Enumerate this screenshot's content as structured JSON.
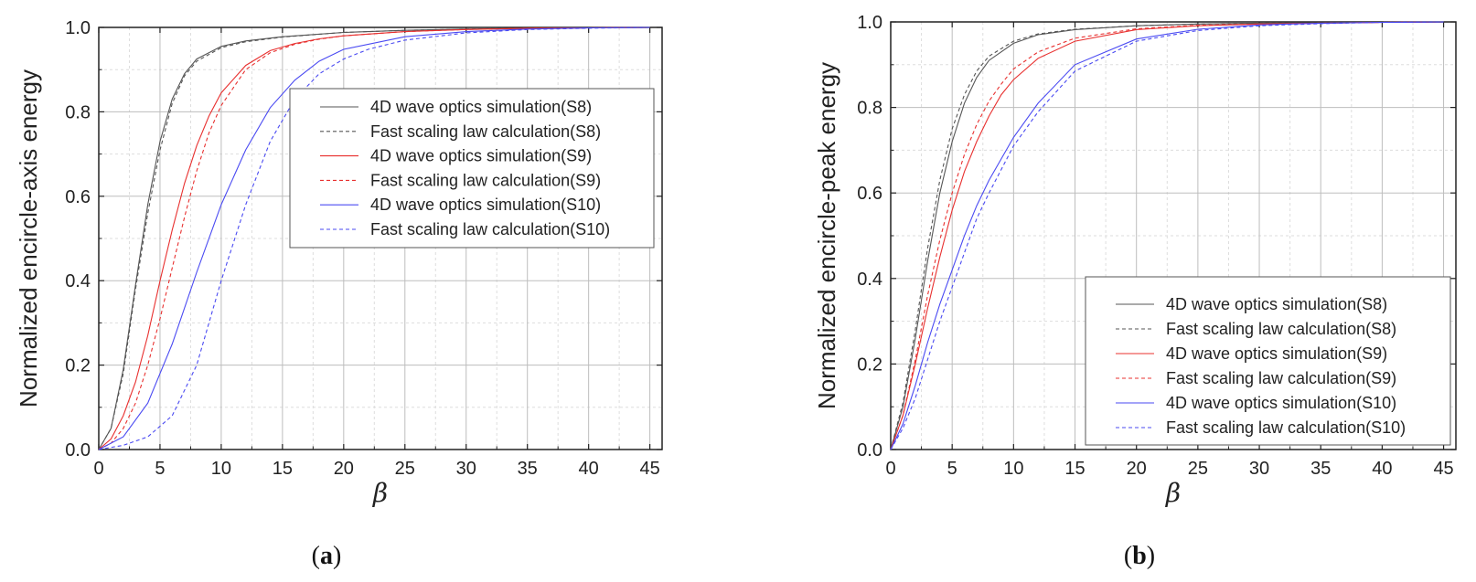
{
  "chart_data": [
    {
      "type": "line",
      "panel_label": "a",
      "xlabel": "β",
      "ylabel": "Normalized encircle-axis energy",
      "xlim": [
        0,
        46
      ],
      "ylim": [
        0,
        1.0
      ],
      "xticks": [
        "0",
        "5",
        "10",
        "15",
        "20",
        "25",
        "30",
        "35",
        "40",
        "45"
      ],
      "yticks": [
        "0.0",
        "0.2",
        "0.4",
        "0.6",
        "0.8",
        "1.0"
      ],
      "grid": true,
      "legend_position": "upper-right",
      "series": [
        {
          "name": "4D wave optics simulation(S8)",
          "color": "#555555",
          "dash": "solid",
          "x": [
            0,
            1,
            2,
            3,
            4,
            5,
            6,
            7,
            8,
            10,
            12,
            15,
            20,
            25,
            30,
            35,
            40,
            45
          ],
          "y": [
            0,
            0.05,
            0.19,
            0.39,
            0.58,
            0.73,
            0.83,
            0.89,
            0.925,
            0.955,
            0.968,
            0.978,
            0.988,
            0.993,
            0.996,
            0.998,
            0.999,
            1.0
          ]
        },
        {
          "name": "Fast scaling law calculation(S8)",
          "color": "#555555",
          "dash": "dashed",
          "x": [
            0,
            1,
            2,
            3,
            4,
            5,
            6,
            7,
            8,
            10,
            12,
            15,
            20,
            25,
            30,
            35,
            40,
            45
          ],
          "y": [
            0,
            0.05,
            0.18,
            0.38,
            0.56,
            0.71,
            0.82,
            0.885,
            0.92,
            0.952,
            0.966,
            0.977,
            0.988,
            0.993,
            0.996,
            0.998,
            0.999,
            1.0
          ]
        },
        {
          "name": "4D wave optics simulation(S9)",
          "color": "#e8302f",
          "dash": "solid",
          "x": [
            0,
            1,
            2,
            3,
            4,
            5,
            6,
            7,
            8,
            9,
            10,
            12,
            14,
            16,
            18,
            20,
            25,
            30,
            35,
            40,
            45
          ],
          "y": [
            0,
            0.025,
            0.08,
            0.16,
            0.27,
            0.4,
            0.52,
            0.63,
            0.72,
            0.79,
            0.845,
            0.91,
            0.945,
            0.962,
            0.973,
            0.98,
            0.99,
            0.995,
            0.998,
            0.999,
            1.0
          ]
        },
        {
          "name": "Fast scaling law calculation(S9)",
          "color": "#e8302f",
          "dash": "dashed",
          "x": [
            0,
            1,
            2,
            3,
            4,
            5,
            6,
            7,
            8,
            9,
            10,
            12,
            14,
            16,
            18,
            20,
            25,
            30,
            35,
            40,
            45
          ],
          "y": [
            0,
            0.015,
            0.05,
            0.11,
            0.2,
            0.31,
            0.43,
            0.55,
            0.66,
            0.75,
            0.815,
            0.9,
            0.94,
            0.96,
            0.972,
            0.98,
            0.99,
            0.995,
            0.998,
            0.999,
            1.0
          ]
        },
        {
          "name": "4D wave optics simulation(S10)",
          "color": "#4a4af2",
          "dash": "solid",
          "x": [
            0,
            2,
            4,
            6,
            8,
            10,
            12,
            14,
            16,
            18,
            20,
            25,
            30,
            35,
            40,
            45
          ],
          "y": [
            0,
            0.03,
            0.11,
            0.25,
            0.42,
            0.58,
            0.71,
            0.81,
            0.875,
            0.92,
            0.948,
            0.978,
            0.99,
            0.996,
            0.999,
            1.0
          ]
        },
        {
          "name": "Fast scaling law calculation(S10)",
          "color": "#4a4af2",
          "dash": "dashed",
          "x": [
            0,
            2,
            4,
            6,
            8,
            10,
            12,
            14,
            16,
            18,
            20,
            22,
            25,
            30,
            35,
            40,
            45
          ],
          "y": [
            0,
            0.01,
            0.03,
            0.08,
            0.2,
            0.4,
            0.58,
            0.73,
            0.83,
            0.89,
            0.925,
            0.948,
            0.97,
            0.987,
            0.995,
            0.998,
            1.0
          ]
        }
      ]
    },
    {
      "type": "line",
      "panel_label": "b",
      "xlabel": "β",
      "ylabel": "Normalized encircle-peak energy",
      "xlim": [
        0,
        46
      ],
      "ylim": [
        0,
        1.0
      ],
      "xticks": [
        "0",
        "5",
        "10",
        "15",
        "20",
        "25",
        "30",
        "35",
        "40",
        "45"
      ],
      "yticks": [
        "0.0",
        "0.2",
        "0.4",
        "0.6",
        "0.8",
        "1.0"
      ],
      "grid": true,
      "legend_position": "lower-right",
      "series": [
        {
          "name": "4D wave optics simulation(S8)",
          "color": "#555555",
          "dash": "solid",
          "x": [
            0,
            1,
            2,
            3,
            4,
            5,
            6,
            7,
            8,
            10,
            12,
            15,
            20,
            25,
            30,
            35,
            40,
            45
          ],
          "y": [
            0,
            0.1,
            0.26,
            0.44,
            0.6,
            0.72,
            0.81,
            0.87,
            0.91,
            0.95,
            0.97,
            0.982,
            0.991,
            0.995,
            0.997,
            0.998,
            0.999,
            1.0
          ]
        },
        {
          "name": "Fast scaling law calculation(S8)",
          "color": "#555555",
          "dash": "dashed",
          "x": [
            0,
            1,
            2,
            3,
            4,
            5,
            6,
            7,
            8,
            10,
            12,
            15,
            20,
            25,
            30,
            35,
            40,
            45
          ],
          "y": [
            0,
            0.11,
            0.28,
            0.47,
            0.63,
            0.75,
            0.83,
            0.885,
            0.92,
            0.955,
            0.972,
            0.983,
            0.991,
            0.995,
            0.997,
            0.998,
            0.999,
            1.0
          ]
        },
        {
          "name": "4D wave optics simulation(S9)",
          "color": "#e8302f",
          "dash": "solid",
          "x": [
            0,
            1,
            2,
            3,
            4,
            5,
            6,
            7,
            8,
            9,
            10,
            12,
            15,
            20,
            25,
            30,
            35,
            40,
            45
          ],
          "y": [
            0,
            0.08,
            0.2,
            0.33,
            0.45,
            0.56,
            0.65,
            0.72,
            0.78,
            0.83,
            0.865,
            0.915,
            0.955,
            0.982,
            0.991,
            0.995,
            0.997,
            0.999,
            1.0
          ]
        },
        {
          "name": "Fast scaling law calculation(S9)",
          "color": "#e8302f",
          "dash": "dashed",
          "x": [
            0,
            1,
            2,
            3,
            4,
            5,
            6,
            7,
            8,
            9,
            10,
            12,
            15,
            20,
            25,
            30,
            35,
            40,
            45
          ],
          "y": [
            0,
            0.08,
            0.21,
            0.36,
            0.49,
            0.6,
            0.69,
            0.76,
            0.815,
            0.855,
            0.89,
            0.93,
            0.962,
            0.984,
            0.992,
            0.995,
            0.997,
            0.999,
            1.0
          ]
        },
        {
          "name": "4D wave optics simulation(S10)",
          "color": "#4a4af2",
          "dash": "solid",
          "x": [
            0,
            1,
            2,
            3,
            4,
            5,
            6,
            7,
            8,
            10,
            12,
            15,
            20,
            25,
            30,
            35,
            40,
            45
          ],
          "y": [
            0,
            0.06,
            0.15,
            0.25,
            0.34,
            0.42,
            0.5,
            0.57,
            0.63,
            0.73,
            0.81,
            0.9,
            0.96,
            0.983,
            0.993,
            0.997,
            0.999,
            1.0
          ]
        },
        {
          "name": "Fast scaling law calculation(S10)",
          "color": "#4a4af2",
          "dash": "dashed",
          "x": [
            0,
            1,
            2,
            3,
            4,
            5,
            6,
            7,
            8,
            10,
            12,
            15,
            20,
            25,
            30,
            35,
            40,
            45
          ],
          "y": [
            0,
            0.05,
            0.12,
            0.21,
            0.3,
            0.38,
            0.46,
            0.54,
            0.6,
            0.71,
            0.79,
            0.885,
            0.955,
            0.98,
            0.991,
            0.996,
            0.999,
            1.0
          ]
        }
      ]
    }
  ]
}
